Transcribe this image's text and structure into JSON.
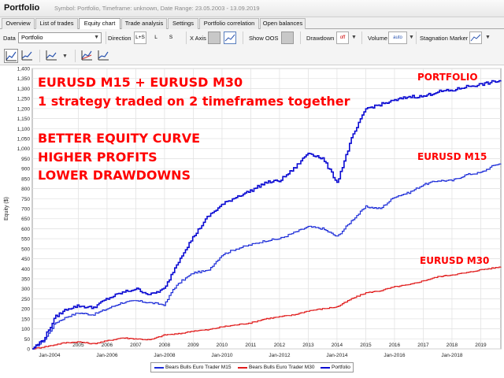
{
  "titlebar": {
    "app_title": "Portfolio",
    "info": "Symbol: Portfolio, Timeframe: unknown, Date Range: 23.05.2003 - 13.09.2019"
  },
  "tabs": [
    "Overview",
    "List of trades",
    "Equity chart",
    "Trade analysis",
    "Settings",
    "Portfolio correlation",
    "Open balances"
  ],
  "active_tab": "Equity chart",
  "toolbar": {
    "data_label": "Data",
    "data_value": "Portfolio",
    "direction_label": "Direction",
    "direction_options": [
      "L+S",
      "L",
      "S"
    ],
    "xaxis_label": "X Axis",
    "xaxis_btn": "time",
    "show_oos_label": "Show OOS",
    "drawdown_label": "Drawdown",
    "drawdown_btn": "off",
    "volume_label": "Volume",
    "volume_btn": "auto",
    "stagnation_label": "Stagnation Marker"
  },
  "icons": {
    "toolbar2": [
      "equity-chart-icon",
      "line-chart-icon",
      "chart-type-icon",
      "multi-chart-icon",
      "trend-chart-icon"
    ]
  },
  "colors": {
    "portfolio": "#0a0ad2",
    "m15": "#1c2cd8",
    "m30": "#e01c1c",
    "annotation": "#ff0000"
  },
  "annotations": {
    "line1": "EURUSD M15 + EURUSD M30",
    "line2": "1 strategy traded on 2 timeframes together",
    "line3": "BETTER EQUITY CURVE",
    "line4": "HIGHER PROFITS",
    "line5": "LOWER DRAWDOWNS",
    "label_portfolio": "PORTFOLIO",
    "label_m15": "EURUSD M15",
    "label_m30": "EURUSD M30"
  },
  "chart_data": {
    "type": "line",
    "ylabel": "Equity ($)",
    "xlabel": "",
    "ylim": [
      0,
      1400
    ],
    "xlim": [
      2003.4,
      2019.7
    ],
    "y_ticks": [
      0,
      50,
      100,
      150,
      200,
      250,
      300,
      350,
      400,
      450,
      500,
      550,
      600,
      650,
      700,
      750,
      800,
      850,
      900,
      950,
      1000,
      1050,
      1100,
      1150,
      1200,
      1250,
      1300,
      1350,
      1400
    ],
    "y_tick_labels": [
      "0",
      "50",
      "100",
      "150",
      "200",
      "250",
      "300",
      "350",
      "400",
      "450",
      "500",
      "550",
      "600",
      "650",
      "700",
      "750",
      "800",
      "850",
      "900",
      "950",
      "1,000",
      "1,050",
      "1,100",
      "1,150",
      "1,200",
      "1,250",
      "1,300",
      "1,350",
      "1,400"
    ],
    "year_ticks": [
      2005,
      2006,
      2007,
      2008,
      2009,
      2010,
      2011,
      2012,
      2013,
      2014,
      2015,
      2016,
      2017,
      2018,
      2019
    ],
    "date_ticks": [
      {
        "x": 2004,
        "label": "Jan-2004"
      },
      {
        "x": 2006,
        "label": "Jan-2006"
      },
      {
        "x": 2008,
        "label": "Jan-2008"
      },
      {
        "x": 2010,
        "label": "Jan-2010"
      },
      {
        "x": 2012,
        "label": "Jan-2012"
      },
      {
        "x": 2014,
        "label": "Jan-2014"
      },
      {
        "x": 2016,
        "label": "Jan-2016"
      },
      {
        "x": 2018,
        "label": "Jan-2018"
      }
    ],
    "grid": true,
    "legend": "bottom-center",
    "series": [
      {
        "name": "Bears Bulls Euro Trader M15",
        "color": "#1c2cd8",
        "x": [
          2003.4,
          2003.8,
          2004.2,
          2004.6,
          2005.0,
          2005.5,
          2006.0,
          2006.5,
          2007.0,
          2007.5,
          2008.0,
          2008.3,
          2008.6,
          2009.0,
          2009.5,
          2010.0,
          2010.5,
          2011.0,
          2011.5,
          2012.0,
          2012.5,
          2013.0,
          2013.5,
          2014.0,
          2014.5,
          2015.0,
          2015.5,
          2016.0,
          2016.5,
          2017.0,
          2017.5,
          2018.0,
          2018.5,
          2019.0,
          2019.5,
          2019.7
        ],
        "y": [
          0,
          40,
          130,
          160,
          180,
          170,
          200,
          230,
          240,
          230,
          220,
          300,
          340,
          380,
          390,
          470,
          500,
          520,
          540,
          550,
          580,
          610,
          600,
          560,
          640,
          710,
          700,
          760,
          780,
          820,
          840,
          840,
          870,
          880,
          920,
          925
        ]
      },
      {
        "name": "Bears Bulls Euro Trader M30",
        "color": "#e01c1c",
        "x": [
          2003.4,
          2004.0,
          2004.5,
          2005.0,
          2005.5,
          2006.0,
          2006.5,
          2007.0,
          2007.5,
          2008.0,
          2008.5,
          2009.0,
          2009.5,
          2010.0,
          2010.5,
          2011.0,
          2011.5,
          2012.0,
          2012.5,
          2013.0,
          2013.5,
          2014.0,
          2014.5,
          2015.0,
          2015.5,
          2016.0,
          2016.5,
          2017.0,
          2017.5,
          2018.0,
          2018.5,
          2019.0,
          2019.5,
          2019.7
        ],
        "y": [
          0,
          15,
          30,
          35,
          25,
          40,
          55,
          50,
          45,
          70,
          75,
          90,
          95,
          110,
          120,
          130,
          150,
          160,
          170,
          190,
          200,
          210,
          250,
          280,
          290,
          310,
          320,
          340,
          360,
          370,
          380,
          395,
          405,
          410
        ]
      },
      {
        "name": "Portfolio",
        "color": "#0a0ad2",
        "x": [
          2003.4,
          2003.8,
          2004.2,
          2004.6,
          2005.0,
          2005.5,
          2006.0,
          2006.5,
          2007.0,
          2007.5,
          2008.0,
          2008.3,
          2008.6,
          2009.0,
          2009.5,
          2010.0,
          2010.5,
          2011.0,
          2011.5,
          2012.0,
          2012.5,
          2013.0,
          2013.5,
          2014.0,
          2014.5,
          2015.0,
          2015.5,
          2016.0,
          2016.5,
          2017.0,
          2017.5,
          2018.0,
          2018.5,
          2019.0,
          2019.5,
          2019.7
        ],
        "y": [
          0,
          50,
          160,
          200,
          215,
          205,
          250,
          280,
          300,
          270,
          300,
          390,
          470,
          560,
          660,
          720,
          760,
          790,
          830,
          840,
          900,
          980,
          950,
          830,
          1050,
          1200,
          1220,
          1240,
          1260,
          1260,
          1285,
          1290,
          1310,
          1320,
          1335,
          1340
        ]
      }
    ]
  },
  "legend_items": [
    "Bears Bulls Euro Trader M15",
    "Bears Bulls Euro Trader M30",
    "Portfolio"
  ]
}
